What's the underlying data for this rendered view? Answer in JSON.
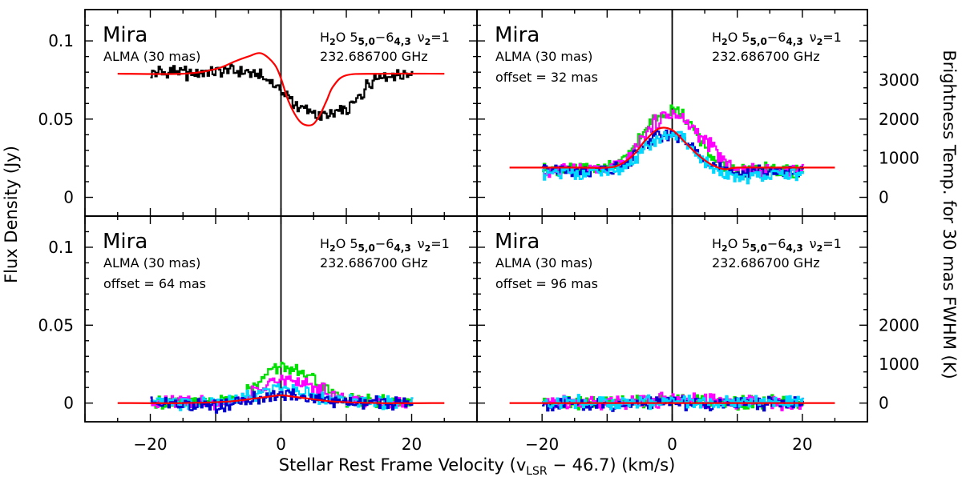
{
  "figure": {
    "xlabel_main": "Stellar Rest Frame Velocity (v",
    "xlabel_sub": "LSR",
    "xlabel_tail": " − 46.7) (km/s)",
    "ylabel_left": "Flux Density (Jy)",
    "ylabel_right": "Brightness Temp. for 30 mas FWHM (K)"
  },
  "chart_data": [
    {
      "type": "line",
      "panel": "top-left",
      "star": "Mira",
      "instrument": "ALMA (30 mas)",
      "offset_label": "",
      "line_label": {
        "species": "H",
        "species_sub": "2",
        "species_tail": "O 5",
        "up_sub": "5,0",
        "dash": "−6",
        "low_sub": "4,3",
        "nu": "ν",
        "nu_sub": "2",
        "nu_tail": "=1"
      },
      "frequency": "232.686700 GHz",
      "xlim": [
        -30,
        30
      ],
      "ylim": [
        -0.012,
        0.12
      ],
      "xticks": [
        "−20",
        "0",
        "20"
      ],
      "yticks": [
        "0",
        "0.05",
        "0.1"
      ],
      "right_ticks": [
        "0",
        "1000",
        "2000",
        "3000"
      ],
      "series": [
        {
          "color": "#000000",
          "kind": "step",
          "x": [
            -20,
            -18,
            -16,
            -14,
            -12,
            -10,
            -8,
            -6,
            -4,
            -2,
            0,
            2,
            4,
            6,
            8,
            10,
            12,
            14,
            16,
            18,
            20
          ],
          "y": [
            0.079,
            0.08,
            0.081,
            0.079,
            0.08,
            0.079,
            0.081,
            0.079,
            0.079,
            0.075,
            0.068,
            0.06,
            0.055,
            0.052,
            0.053,
            0.056,
            0.065,
            0.076,
            0.078,
            0.079,
            0.08
          ]
        },
        {
          "color": "#ff0000",
          "kind": "smooth",
          "x": [
            -25,
            -15,
            -10,
            -7,
            -5,
            -3,
            -1,
            0,
            1,
            2,
            3,
            4,
            5,
            6,
            7,
            8,
            10,
            15,
            25
          ],
          "y": [
            0.079,
            0.079,
            0.082,
            0.087,
            0.09,
            0.092,
            0.085,
            0.076,
            0.063,
            0.054,
            0.048,
            0.046,
            0.047,
            0.053,
            0.062,
            0.071,
            0.078,
            0.079,
            0.079
          ]
        }
      ]
    },
    {
      "type": "line",
      "panel": "top-right",
      "star": "Mira",
      "instrument": "ALMA (30 mas)",
      "offset_label": "offset = 32 mas",
      "line_label": {
        "species": "H",
        "species_sub": "2",
        "species_tail": "O 5",
        "up_sub": "5,0",
        "dash": "−6",
        "low_sub": "4,3",
        "nu": "ν",
        "nu_sub": "2",
        "nu_tail": "=1"
      },
      "frequency": "232.686700 GHz",
      "xlim": [
        -30,
        30
      ],
      "ylim": [
        -0.012,
        0.12
      ],
      "xticks": [
        "−20",
        "0",
        "20"
      ],
      "yticks": [],
      "right_ticks": [
        "0",
        "1000",
        "2000",
        "3000"
      ],
      "series": [
        {
          "color": "#00e000",
          "kind": "step",
          "x": [
            -20,
            -16,
            -12,
            -9,
            -7,
            -5,
            -3,
            -1,
            0,
            2,
            4,
            6,
            8,
            10,
            14,
            20
          ],
          "y": [
            0.018,
            0.019,
            0.018,
            0.019,
            0.025,
            0.038,
            0.05,
            0.055,
            0.058,
            0.05,
            0.038,
            0.026,
            0.019,
            0.017,
            0.018,
            0.017
          ]
        },
        {
          "color": "#ff00ff",
          "kind": "step",
          "x": [
            -20,
            -16,
            -12,
            -9,
            -7,
            -5,
            -3,
            -1,
            0,
            2,
            4,
            6,
            8,
            10,
            14,
            20
          ],
          "y": [
            0.017,
            0.018,
            0.018,
            0.019,
            0.024,
            0.036,
            0.047,
            0.052,
            0.053,
            0.048,
            0.04,
            0.032,
            0.022,
            0.018,
            0.017,
            0.018
          ]
        },
        {
          "color": "#0000cc",
          "kind": "step",
          "x": [
            -20,
            -16,
            -12,
            -9,
            -7,
            -5,
            -3,
            -1,
            0,
            2,
            4,
            6,
            8,
            10,
            14,
            20
          ],
          "y": [
            0.018,
            0.017,
            0.017,
            0.018,
            0.021,
            0.03,
            0.038,
            0.04,
            0.04,
            0.036,
            0.028,
            0.022,
            0.016,
            0.015,
            0.017,
            0.016
          ]
        },
        {
          "color": "#00d8ff",
          "kind": "step",
          "x": [
            -20,
            -16,
            -12,
            -9,
            -7,
            -5,
            -3,
            -1,
            0,
            2,
            4,
            6,
            8,
            10,
            14,
            20
          ],
          "y": [
            0.014,
            0.015,
            0.016,
            0.016,
            0.02,
            0.028,
            0.036,
            0.04,
            0.04,
            0.036,
            0.026,
            0.018,
            0.014,
            0.013,
            0.014,
            0.014
          ]
        },
        {
          "color": "#ff0000",
          "kind": "smooth",
          "x": [
            -25,
            -15,
            -10,
            -8,
            -6,
            -4,
            -2,
            0,
            2,
            4,
            6,
            8,
            10,
            15,
            25
          ],
          "y": [
            0.019,
            0.019,
            0.019,
            0.021,
            0.027,
            0.037,
            0.044,
            0.043,
            0.035,
            0.027,
            0.021,
            0.018,
            0.019,
            0.019,
            0.019
          ]
        }
      ]
    },
    {
      "type": "line",
      "panel": "bottom-left",
      "star": "Mira",
      "instrument": "ALMA (30 mas)",
      "offset_label": "offset = 64 mas",
      "line_label": {
        "species": "H",
        "species_sub": "2",
        "species_tail": "O 5",
        "up_sub": "5,0",
        "dash": "−6",
        "low_sub": "4,3",
        "nu": "ν",
        "nu_sub": "2",
        "nu_tail": "=1"
      },
      "frequency": "232.686700 GHz",
      "xlim": [
        -30,
        30
      ],
      "ylim": [
        -0.012,
        0.12
      ],
      "xticks": [
        "−20",
        "0",
        "20"
      ],
      "yticks": [
        "0",
        "0.05",
        "0.1"
      ],
      "right_ticks": [
        "0",
        "1000",
        "2000"
      ],
      "series": [
        {
          "color": "#00e000",
          "kind": "step",
          "x": [
            -20,
            -15,
            -10,
            -6,
            -4,
            -2,
            0,
            2,
            4,
            6,
            8,
            10,
            15,
            20
          ],
          "y": [
            0.001,
            0.0,
            0.001,
            0.004,
            0.012,
            0.02,
            0.024,
            0.021,
            0.016,
            0.011,
            0.006,
            0.002,
            0.001,
            0.0
          ]
        },
        {
          "color": "#ff00ff",
          "kind": "step",
          "x": [
            -20,
            -15,
            -10,
            -6,
            -4,
            -2,
            0,
            2,
            4,
            6,
            8,
            10,
            15,
            20
          ],
          "y": [
            0.0,
            0.001,
            0.0,
            0.003,
            0.008,
            0.012,
            0.014,
            0.014,
            0.012,
            0.009,
            0.005,
            0.002,
            0.0,
            0.001
          ]
        },
        {
          "color": "#00d8ff",
          "kind": "step",
          "x": [
            -20,
            -15,
            -10,
            -6,
            -4,
            -2,
            0,
            2,
            4,
            6,
            8,
            10,
            15,
            20
          ],
          "y": [
            0.0,
            0.0,
            0.001,
            0.002,
            0.005,
            0.008,
            0.01,
            0.009,
            0.007,
            0.004,
            0.002,
            0.001,
            0.0,
            0.0
          ]
        },
        {
          "color": "#0000cc",
          "kind": "step",
          "x": [
            -20,
            -15,
            -10,
            -6,
            -4,
            -2,
            0,
            2,
            4,
            6,
            8,
            10,
            15,
            20
          ],
          "y": [
            0.0,
            -0.001,
            -0.002,
            0.001,
            0.003,
            0.005,
            0.006,
            0.005,
            0.004,
            0.002,
            0.001,
            0.0,
            0.0,
            0.0
          ]
        },
        {
          "color": "#ff0000",
          "kind": "smooth",
          "x": [
            -25,
            -15,
            -8,
            -4,
            -2,
            0,
            2,
            4,
            8,
            15,
            25
          ],
          "y": [
            0.0,
            0.0,
            0.001,
            0.003,
            0.004,
            0.005,
            0.004,
            0.003,
            0.001,
            0.0,
            0.0
          ]
        }
      ]
    },
    {
      "type": "line",
      "panel": "bottom-right",
      "star": "Mira",
      "instrument": "ALMA (30 mas)",
      "offset_label": "offset = 96 mas",
      "line_label": {
        "species": "H",
        "species_sub": "2",
        "species_tail": "O 5",
        "up_sub": "5,0",
        "dash": "−6",
        "low_sub": "4,3",
        "nu": "ν",
        "nu_sub": "2",
        "nu_tail": "=1"
      },
      "frequency": "232.686700 GHz",
      "xlim": [
        -30,
        30
      ],
      "ylim": [
        -0.012,
        0.12
      ],
      "xticks": [
        "−20",
        "0",
        "20"
      ],
      "yticks": [],
      "right_ticks": [
        "0",
        "1000",
        "2000"
      ],
      "series": [
        {
          "color": "#00e000",
          "kind": "step",
          "x": [
            -20,
            -15,
            -10,
            -5,
            -2,
            0,
            2,
            5,
            10,
            15,
            20
          ],
          "y": [
            0.0,
            0.001,
            0.0,
            0.001,
            0.002,
            0.004,
            0.002,
            0.001,
            0.0,
            0.001,
            0.0
          ]
        },
        {
          "color": "#ff00ff",
          "kind": "step",
          "x": [
            -20,
            -15,
            -10,
            -5,
            -2,
            0,
            2,
            5,
            10,
            15,
            20
          ],
          "y": [
            0.001,
            0.0,
            0.001,
            0.001,
            0.002,
            0.003,
            0.002,
            0.001,
            0.001,
            0.0,
            0.0
          ]
        },
        {
          "color": "#0000cc",
          "kind": "step",
          "x": [
            -20,
            -15,
            -10,
            -5,
            -2,
            0,
            2,
            5,
            10,
            15,
            20
          ],
          "y": [
            -0.001,
            0.0,
            -0.001,
            0.0,
            0.001,
            0.001,
            0.0,
            0.0,
            -0.001,
            0.0,
            -0.001
          ]
        },
        {
          "color": "#00d8ff",
          "kind": "step",
          "x": [
            -20,
            -15,
            -10,
            -5,
            -2,
            0,
            2,
            5,
            10,
            15,
            20
          ],
          "y": [
            0.0,
            0.001,
            0.0,
            0.0,
            0.001,
            0.002,
            0.001,
            0.0,
            0.001,
            0.0,
            0.001
          ]
        },
        {
          "color": "#ff0000",
          "kind": "smooth",
          "x": [
            -25,
            25
          ],
          "y": [
            0.0,
            0.0
          ]
        }
      ]
    }
  ]
}
